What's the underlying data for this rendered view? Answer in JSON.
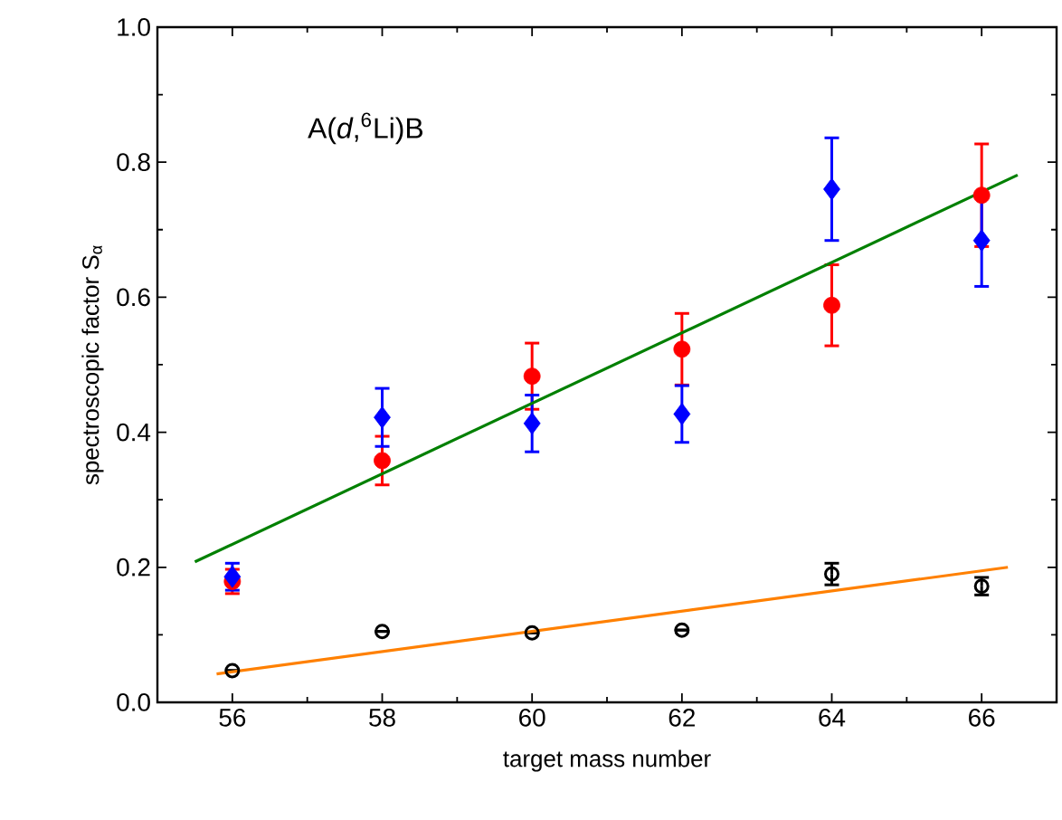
{
  "chart_data": {
    "type": "scatter",
    "xlabel": "target mass number",
    "ylabel": "spectroscopic factor S$_{α}$",
    "annotations": [
      "A(*d*,$^{6}$Li)B"
    ],
    "xlim": [
      55,
      67
    ],
    "ylim": [
      0,
      1.0
    ],
    "xticks": [
      56,
      58,
      60,
      62,
      64,
      66
    ],
    "yticks": [
      {
        "value": 0,
        "label": "0.0"
      },
      0.2,
      0.4,
      0.6,
      0.8,
      {
        "value": 1,
        "label": "1.0"
      }
    ],
    "x": [
      56,
      58,
      60,
      62,
      64,
      66
    ],
    "series": [
      {
        "color": "#ff0000",
        "marker": "circle",
        "values": [
          0.179,
          0.358,
          0.483,
          0.523,
          0.588,
          0.751
        ],
        "errors": [
          0.018,
          0.036,
          0.049,
          0.053,
          0.06,
          0.076
        ]
      },
      {
        "color": "#0000ff",
        "marker": "diamond",
        "values": [
          0.186,
          0.422,
          0.413,
          0.427,
          0.76,
          0.684
        ],
        "errors": [
          0.02,
          0.043,
          0.042,
          0.042,
          0.076,
          0.068
        ]
      },
      {
        "color": "#000000",
        "marker": "open circle",
        "values": [
          0.047,
          0.105,
          0.103,
          0.107,
          0.19,
          0.172
        ],
        "errors": [
          null,
          null,
          null,
          null,
          0.016,
          0.013
        ]
      },
      {
        "type": "line",
        "color": "#008000",
        "marker": "none",
        "x": [
          55.5,
          66.48
        ],
        "values": [
          0.208,
          0.781
        ]
      },
      {
        "type": "line",
        "color": "#ff8000",
        "marker": "none",
        "x": [
          55.79,
          66.35
        ],
        "values": [
          0.042,
          0.2
        ]
      }
    ]
  }
}
